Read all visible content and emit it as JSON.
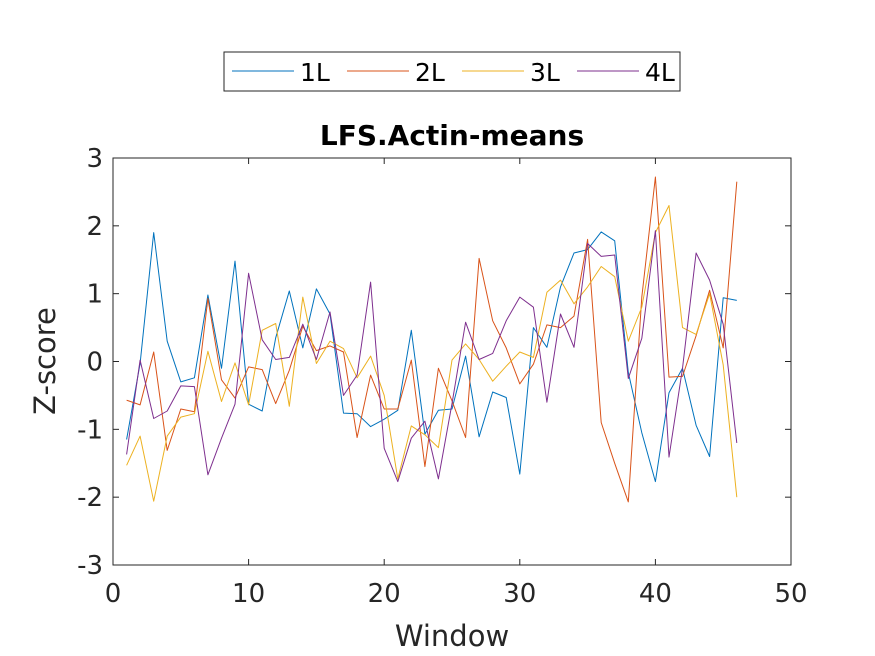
{
  "chart_data": {
    "type": "line",
    "title": "LFS.Actin-means",
    "xlabel": "Window",
    "ylabel": "Z-score",
    "xlim": [
      0,
      50
    ],
    "ylim": [
      -3,
      3
    ],
    "xticks": [
      0,
      10,
      20,
      30,
      40,
      50
    ],
    "yticks": [
      -3,
      -2,
      -1,
      0,
      1,
      2,
      3
    ],
    "xtick_labels": [
      "0",
      "10",
      "20",
      "30",
      "40",
      "50"
    ],
    "ytick_labels": [
      "-3",
      "-2",
      "-1",
      "0",
      "1",
      "2",
      "3"
    ],
    "grid": false,
    "legend_position": "top (outside, horizontal)",
    "x": [
      1,
      2,
      3,
      4,
      5,
      6,
      7,
      8,
      9,
      10,
      11,
      12,
      13,
      14,
      15,
      16,
      17,
      18,
      19,
      20,
      21,
      22,
      23,
      24,
      25,
      26,
      27,
      28,
      29,
      30,
      31,
      32,
      33,
      34,
      35,
      36,
      37,
      38,
      39,
      40,
      41,
      42,
      43,
      44,
      45,
      46
    ],
    "series": [
      {
        "name": "1L",
        "color": "#0072BD",
        "values": [
          -1.15,
          -0.03,
          1.9,
          0.3,
          -0.3,
          -0.24,
          0.98,
          -0.1,
          1.48,
          -0.63,
          -0.73,
          0.35,
          1.04,
          0.2,
          1.07,
          0.7,
          -0.76,
          -0.77,
          -0.96,
          -0.85,
          -0.72,
          0.46,
          -1.07,
          -0.72,
          -0.7,
          0.08,
          -1.11,
          -0.45,
          -0.53,
          -1.66,
          0.5,
          0.21,
          1.1,
          1.6,
          1.65,
          1.91,
          1.78,
          -0.16,
          -1.05,
          -1.77,
          -0.46,
          -0.1,
          -0.94,
          -1.4,
          0.94,
          0.9
        ]
      },
      {
        "name": "2L",
        "color": "#D95319",
        "values": [
          -0.57,
          -0.64,
          0.14,
          -1.31,
          -0.7,
          -0.74,
          0.93,
          -0.27,
          -0.54,
          -0.08,
          -0.12,
          -0.62,
          -0.13,
          0.52,
          0.16,
          0.23,
          0.14,
          -1.12,
          -0.2,
          -0.7,
          -0.7,
          0.02,
          -1.55,
          -0.1,
          -0.58,
          -1.12,
          1.52,
          0.6,
          0.2,
          -0.33,
          -0.04,
          0.54,
          0.5,
          0.67,
          1.8,
          -0.9,
          -1.5,
          -2.07,
          0.95,
          2.72,
          -0.23,
          -0.22,
          0.38,
          1.05,
          0.2,
          2.65
        ]
      },
      {
        "name": "3L",
        "color": "#EDB120",
        "values": [
          -1.53,
          -1.1,
          -2.06,
          -1.1,
          -0.82,
          -0.77,
          0.15,
          -0.59,
          -0.02,
          -0.64,
          0.46,
          0.56,
          -0.66,
          0.95,
          -0.03,
          0.3,
          0.19,
          -0.24,
          0.08,
          -0.5,
          -1.73,
          -0.95,
          -1.08,
          -1.27,
          0.02,
          0.26,
          0.03,
          -0.29,
          -0.07,
          0.14,
          0.06,
          1.02,
          1.2,
          0.85,
          1.1,
          1.4,
          1.25,
          0.3,
          0.8,
          1.9,
          2.3,
          0.5,
          0.4,
          1.0,
          -0.05,
          -2.0
        ]
      },
      {
        "name": "4L",
        "color": "#7E2F8E",
        "values": [
          -1.37,
          0.02,
          -0.84,
          -0.73,
          -0.36,
          -0.37,
          -1.67,
          -1.13,
          -0.63,
          1.3,
          0.32,
          0.03,
          0.06,
          0.55,
          0.03,
          0.73,
          -0.5,
          -0.2,
          1.17,
          -1.28,
          -1.77,
          -1.13,
          -0.88,
          -1.73,
          -0.62,
          0.58,
          0.03,
          0.12,
          0.6,
          0.95,
          0.8,
          -0.6,
          0.7,
          0.21,
          1.74,
          1.55,
          1.57,
          -0.25,
          0.34,
          1.93,
          -1.41,
          -0.1,
          1.6,
          1.2,
          0.55,
          -1.2
        ]
      }
    ]
  }
}
